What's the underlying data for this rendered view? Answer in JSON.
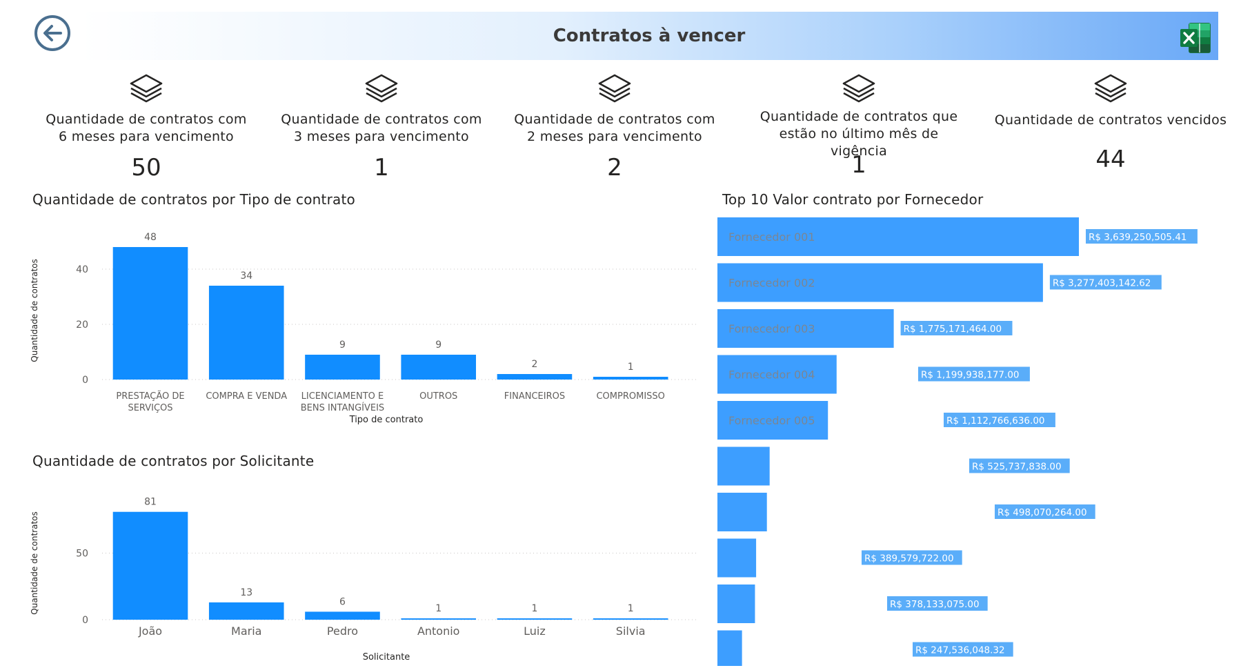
{
  "header": {
    "title": "Contratos à vencer"
  },
  "kpis": [
    {
      "label": "Quantidade de contratos com 6 meses para vencimento",
      "value": "50"
    },
    {
      "label": "Quantidade de contratos com 3 meses para vencimento",
      "value": "1"
    },
    {
      "label": "Quantidade de contratos com 2 meses para vencimento",
      "value": "2"
    },
    {
      "label": "Quantidade de contratos que estão no último mês de vigência",
      "value": "1"
    },
    {
      "label": "Quantidade de contratos vencidos",
      "value": "44"
    }
  ],
  "colors": {
    "bar": "#118dff",
    "bar_light": "#3d9eff",
    "label_bg": "#5aadf9",
    "back": "#4a6f8f",
    "excel": "#1e7145"
  },
  "icons": {
    "back": "back-arrow-icon",
    "excel": "excel-icon",
    "kpi": "stack-icon"
  },
  "chart_data": [
    {
      "type": "bar",
      "title": "Quantidade de contratos por Tipo de contrato",
      "xlabel": "Tipo de contrato",
      "ylabel": "Quantidade de contratos",
      "categories": [
        "PRESTAÇÃO DE SERVIÇOS",
        "COMPRA E VENDA",
        "LICENCIAMENTO E BENS INTANGÍVEIS",
        "OUTROS",
        "FINANCEIROS",
        "COMPROMISSO"
      ],
      "values": [
        48,
        34,
        9,
        9,
        2,
        1
      ],
      "yticks": [
        0,
        20,
        40
      ],
      "ylim": [
        0,
        50
      ],
      "grid": true
    },
    {
      "type": "bar",
      "title": "Quantidade de contratos por Solicitante",
      "xlabel": "Solicitante",
      "ylabel": "Quantidade de contratos",
      "categories": [
        "João",
        "Maria",
        "Pedro",
        "Antonio",
        "Luiz",
        "Silvia"
      ],
      "values": [
        81,
        13,
        6,
        1,
        1,
        1
      ],
      "yticks": [
        0,
        50
      ],
      "ylim": [
        0,
        85
      ],
      "grid": true
    },
    {
      "type": "bar",
      "orientation": "horizontal",
      "title": "Top 10 Valor contrato por Fornecedor",
      "categories": [
        "Fornecedor 001",
        "Fornecedor 002",
        "Fornecedor 003",
        "Fornecedor 004",
        "Fornecedor 005",
        "",
        "",
        "",
        "",
        ""
      ],
      "values": [
        3639250505.41,
        3277403142.62,
        1775171464.0,
        1199938177.0,
        1112766636.0,
        525737838.0,
        498070264.0,
        389579722.0,
        378133075.0,
        247536048.32
      ],
      "data_labels": [
        "R$ 3,639,250,505.41",
        "R$ 3,277,403,142.62",
        "R$ 1,775,171,464.00",
        "R$ 1,199,938,177.00",
        "R$ 1,112,766,636.00",
        "R$ 525,737,838.00",
        "R$ 498,070,264.00",
        "R$ 389,579,722.00",
        "R$ 378,133,075.00",
        "R$ 247,536,048.32"
      ]
    }
  ]
}
